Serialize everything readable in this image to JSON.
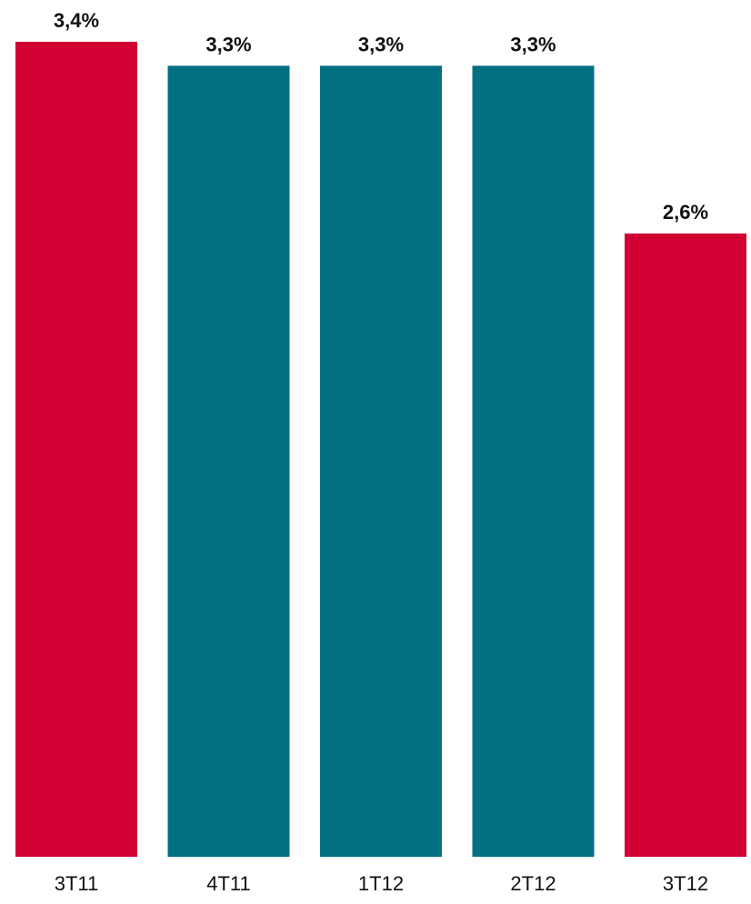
{
  "chart_data": {
    "type": "bar",
    "categories": [
      "3T11",
      "4T11",
      "1T12",
      "2T12",
      "3T12"
    ],
    "values": [
      3.4,
      3.3,
      3.3,
      3.3,
      2.6
    ],
    "value_labels": [
      "3,4%",
      "3,3%",
      "3,3%",
      "3,3%",
      "2,6%"
    ],
    "bar_colors": [
      "#D10033",
      "#007082",
      "#007082",
      "#007082",
      "#D10033"
    ],
    "title": "",
    "xlabel": "",
    "ylabel": "",
    "ylim": [
      0,
      3.4
    ],
    "grid": false,
    "legend": "none",
    "data_labels": true
  }
}
